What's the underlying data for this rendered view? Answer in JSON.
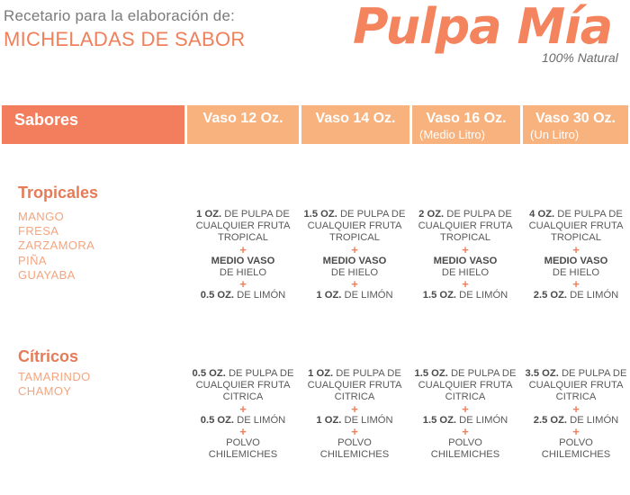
{
  "header": {
    "subtitle": "Recetario para la elaboración de:",
    "title": "MICHELADAS DE SABOR",
    "brand": "Pulpa Mía",
    "tagline": "100% Natural"
  },
  "columns": [
    {
      "label": "Sabores"
    },
    {
      "label": "Vaso 12 Oz."
    },
    {
      "label": "Vaso 14 Oz."
    },
    {
      "label": "Vaso 16 Oz.",
      "sub": "(Medio Litro)"
    },
    {
      "label": "Vaso 30 Oz.",
      "sub": "(Un Litro)"
    }
  ],
  "tropicales": {
    "title": "Tropicales",
    "flavors": [
      "MANGO",
      "FRESA",
      "ZARZAMORA",
      "PIÑA",
      "GUAYABA"
    ],
    "plus": "+",
    "cells": [
      {
        "pulp_amt": "1 OZ.",
        "pulp_txt": "DE PULPA DE",
        "pulp_l2": "CUALQUIER FRUTA",
        "pulp_l3": "TROPICAL",
        "ice_amt": "MEDIO VASO",
        "ice_txt": "DE HIELO",
        "lime_amt": "0.5 OZ.",
        "lime_txt": "DE LIMÓN"
      },
      {
        "pulp_amt": "1.5 OZ.",
        "pulp_txt": "DE PULPA DE",
        "pulp_l2": "CUALQUIER FRUTA",
        "pulp_l3": "TROPICAL",
        "ice_amt": "MEDIO VASO",
        "ice_txt": "DE HIELO",
        "lime_amt": "1 OZ.",
        "lime_txt": "DE LIMÓN"
      },
      {
        "pulp_amt": "2 OZ.",
        "pulp_txt": "DE PULPA DE",
        "pulp_l2": "CUALQUIER FRUTA",
        "pulp_l3": "TROPICAL",
        "ice_amt": "MEDIO VASO",
        "ice_txt": "DE HIELO",
        "lime_amt": "1.5 OZ.",
        "lime_txt": "DE LIMÓN"
      },
      {
        "pulp_amt": "4 OZ.",
        "pulp_txt": "DE PULPA DE",
        "pulp_l2": "CUALQUIER FRUTA",
        "pulp_l3": "TROPICAL",
        "ice_amt": "MEDIO VASO",
        "ice_txt": "DE HIELO",
        "lime_amt": "2.5 OZ.",
        "lime_txt": "DE LIMÓN"
      }
    ]
  },
  "citricos": {
    "title": "Cítricos",
    "flavors": [
      "TAMARINDO",
      "CHAMOY"
    ],
    "plus": "+",
    "cells": [
      {
        "pulp_amt": "0.5 OZ.",
        "pulp_txt": "DE PULPA DE",
        "pulp_l2": "CUALQUIER FRUTA",
        "pulp_l3": "CITRICA",
        "lime_amt": "0.5 OZ.",
        "lime_txt": "DE LIMÓN",
        "powder_l1": "POLVO",
        "powder_l2": "CHILEMICHES"
      },
      {
        "pulp_amt": "1 OZ.",
        "pulp_txt": "DE PULPA DE",
        "pulp_l2": "CUALQUIER FRUTA",
        "pulp_l3": "CITRICA",
        "lime_amt": "1 OZ.",
        "lime_txt": "DE LIMÓN",
        "powder_l1": "POLVO",
        "powder_l2": "CHILEMICHES"
      },
      {
        "pulp_amt": "1.5 OZ.",
        "pulp_txt": "DE PULPA DE",
        "pulp_l2": "CUALQUIER FRUTA",
        "pulp_l3": "CITRICA",
        "lime_amt": "1.5 OZ.",
        "lime_txt": "DE LIMÓN",
        "powder_l1": "POLVO",
        "powder_l2": "CHILEMICHES"
      },
      {
        "pulp_amt": "3.5 OZ.",
        "pulp_txt": "DE PULPA DE",
        "pulp_l2": "CUALQUIER FRUTA",
        "pulp_l3": "CITRICA",
        "lime_amt": "2.5 OZ.",
        "lime_txt": "DE LIMÓN",
        "powder_l1": "POLVO",
        "powder_l2": "CHILEMICHES"
      }
    ]
  },
  "colors": {
    "accent": "#f27e5d",
    "header_bg": "#f7b27e",
    "flavor_text": "#f3a57f"
  }
}
